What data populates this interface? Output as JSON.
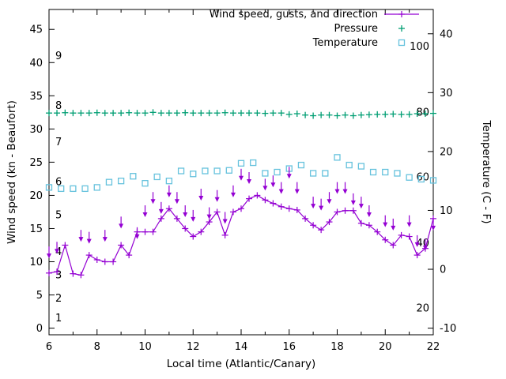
{
  "colors": {
    "background": "#ffffff",
    "foreground": "#000000",
    "wind": "#9400d3",
    "pressure": "#009e73",
    "temperature": "#66c2dd"
  },
  "chart_data": {
    "type": "line",
    "xlabel": "Local time (Atlantic/Canary)",
    "ylabel_left": "Wind speed (kn - Beaufort)",
    "ylabel_right": "Temperature (C - F)",
    "x_range": [
      6,
      22
    ],
    "y_left_range_kn": [
      -1,
      48
    ],
    "y_right_unit": "C mapped as kn = (C+10)*47/53",
    "x_ticks": [
      6,
      8,
      10,
      12,
      14,
      16,
      18,
      20,
      22
    ],
    "y_left_ticks": [
      0,
      5,
      10,
      15,
      20,
      25,
      30,
      35,
      40,
      45
    ],
    "y_right_ticks": [
      -10,
      0,
      10,
      20,
      30,
      40
    ],
    "beaufort_labels": [
      {
        "label": "1",
        "kn": 1.5
      },
      {
        "label": "2",
        "kn": 4.5
      },
      {
        "label": "3",
        "kn": 8
      },
      {
        "label": "4",
        "kn": 11.5
      },
      {
        "label": "5",
        "kn": 17
      },
      {
        "label": "6",
        "kn": 22
      },
      {
        "label": "7",
        "kn": 28
      },
      {
        "label": "8",
        "kn": 33.5
      },
      {
        "label": "9",
        "kn": 41
      }
    ],
    "fahrenheit_labels": [
      {
        "label": "20",
        "kn": 3
      },
      {
        "label": "40",
        "kn": 12.8
      },
      {
        "label": "60",
        "kn": 22.7
      },
      {
        "label": "80",
        "kn": 32.5
      },
      {
        "label": "100",
        "kn": 42.4
      }
    ],
    "x": [
      6,
      6.33,
      6.67,
      7,
      7.33,
      7.67,
      8,
      8.33,
      8.67,
      9,
      9.33,
      9.67,
      10,
      10.33,
      10.67,
      11,
      11.33,
      11.67,
      12,
      12.33,
      12.67,
      13,
      13.33,
      13.67,
      14,
      14.33,
      14.67,
      15,
      15.33,
      15.67,
      16,
      16.33,
      16.67,
      17,
      17.33,
      17.67,
      18,
      18.33,
      18.67,
      19,
      19.33,
      19.67,
      20,
      20.33,
      20.67,
      21,
      21.33,
      21.67,
      22
    ],
    "series": {
      "wind": {
        "label": "Wind speed, gusts, and direction",
        "color": "#9400d3",
        "y_kn": [
          8.3,
          8.5,
          12.5,
          8.2,
          8,
          11,
          10.3,
          10,
          10,
          12.5,
          11,
          14.5,
          14.5,
          14.5,
          16.5,
          18,
          16.5,
          15,
          13.8,
          14.5,
          16,
          17.5,
          14,
          17.5,
          18,
          19.5,
          20,
          19.3,
          18.8,
          18.3,
          18,
          17.8,
          16.5,
          15.5,
          14.8,
          16,
          17.5,
          17.7,
          17.7,
          15.8,
          15.5,
          14.5,
          13.3,
          12.5,
          14,
          13.8,
          11,
          12,
          16.5
        ]
      },
      "gusts": {
        "color": "#9400d3",
        "x": [
          6,
          6.33,
          7.33,
          7.67,
          8.33,
          9,
          9.67,
          10,
          10.33,
          10.67,
          11,
          11.33,
          11.67,
          12,
          12.33,
          12.67,
          13,
          13.33,
          13.67,
          14,
          14.33,
          15,
          15.33,
          15.67,
          16,
          16.33,
          17,
          17.33,
          17.67,
          18,
          18.33,
          18.67,
          19,
          19.33,
          20,
          20.33,
          21,
          21.33,
          21.67,
          22
        ],
        "y_kn": [
          12.3,
          13,
          14.8,
          14.5,
          14.8,
          16.8,
          15.2,
          18.5,
          20.5,
          19,
          21.5,
          20.5,
          18.5,
          17.8,
          21,
          18.2,
          20.8,
          17.5,
          21.5,
          24,
          23.5,
          22.5,
          23,
          22,
          24.3,
          22,
          19.8,
          19.5,
          20.5,
          22,
          22,
          20.3,
          19.8,
          18.5,
          17,
          16.5,
          17,
          14,
          13.5,
          16.5
        ]
      },
      "pressure": {
        "label": "Pressure",
        "color": "#009e73",
        "y_kn": [
          32.4,
          32.4,
          32.45,
          32.4,
          32.4,
          32.4,
          32.45,
          32.4,
          32.4,
          32.4,
          32.45,
          32.4,
          32.4,
          32.5,
          32.4,
          32.4,
          32.4,
          32.45,
          32.4,
          32.4,
          32.4,
          32.4,
          32.45,
          32.4,
          32.4,
          32.4,
          32.4,
          32.35,
          32.4,
          32.4,
          32.2,
          32.3,
          32.1,
          32,
          32.1,
          32.1,
          32,
          32.1,
          32,
          32.1,
          32.15,
          32.2,
          32.2,
          32.25,
          32.2,
          32.2,
          32.3,
          32.3,
          32.35
        ]
      },
      "temperature": {
        "label": "Temperature",
        "color": "#66c2dd",
        "x": [
          6,
          6.5,
          7,
          7.5,
          8,
          8.5,
          9,
          9.5,
          10,
          10.5,
          11,
          11.5,
          12,
          12.5,
          13,
          13.5,
          14,
          14.5,
          15,
          15.5,
          16,
          16.5,
          17,
          17.5,
          18,
          18.5,
          19,
          19.5,
          20,
          20.5,
          21,
          21.5,
          22
        ],
        "y_c": [
          13.9,
          13.7,
          13.7,
          13.7,
          13.9,
          14.8,
          15,
          15.8,
          14.6,
          15.7,
          15,
          16.7,
          16.2,
          16.7,
          16.7,
          16.8,
          18,
          18.1,
          16.3,
          16.5,
          17.1,
          17.7,
          16.3,
          16.3,
          19,
          17.7,
          17.5,
          16.5,
          16.5,
          16.3,
          15.6,
          15.3,
          15.1
        ]
      }
    }
  }
}
